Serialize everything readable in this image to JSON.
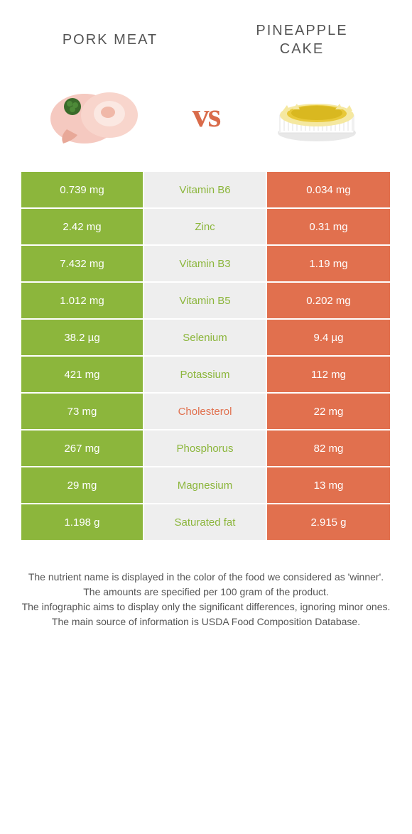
{
  "header": {
    "left_title": "Pork meat",
    "right_title": "Pineapple cake",
    "vs": "vs"
  },
  "colors": {
    "left_bg": "#8cb63c",
    "right_bg": "#e1704e",
    "mid_bg": "#eeeeee",
    "winner_left_text": "#8cb63c",
    "winner_right_text": "#e1704e"
  },
  "table": {
    "rows": [
      {
        "left": "0.739 mg",
        "mid": "Vitamin B6",
        "right": "0.034 mg",
        "winner": "left"
      },
      {
        "left": "2.42 mg",
        "mid": "Zinc",
        "right": "0.31 mg",
        "winner": "left"
      },
      {
        "left": "7.432 mg",
        "mid": "Vitamin B3",
        "right": "1.19 mg",
        "winner": "left"
      },
      {
        "left": "1.012 mg",
        "mid": "Vitamin B5",
        "right": "0.202 mg",
        "winner": "left"
      },
      {
        "left": "38.2 µg",
        "mid": "Selenium",
        "right": "9.4 µg",
        "winner": "left"
      },
      {
        "left": "421 mg",
        "mid": "Potassium",
        "right": "112 mg",
        "winner": "left"
      },
      {
        "left": "73 mg",
        "mid": "Cholesterol",
        "right": "22 mg",
        "winner": "right"
      },
      {
        "left": "267 mg",
        "mid": "Phosphorus",
        "right": "82 mg",
        "winner": "left"
      },
      {
        "left": "29 mg",
        "mid": "Magnesium",
        "right": "13 mg",
        "winner": "left"
      },
      {
        "left": "1.198 g",
        "mid": "Saturated fat",
        "right": "2.915 g",
        "winner": "left"
      }
    ]
  },
  "caption": {
    "line1": "The nutrient name is displayed in the color of the food we considered as 'winner'.",
    "line2": "The amounts are specified per 100 gram of the product.",
    "line3": "The infographic aims to display only the significant differences, ignoring minor ones.",
    "line4": "The main source of information is USDA Food Composition Database."
  }
}
